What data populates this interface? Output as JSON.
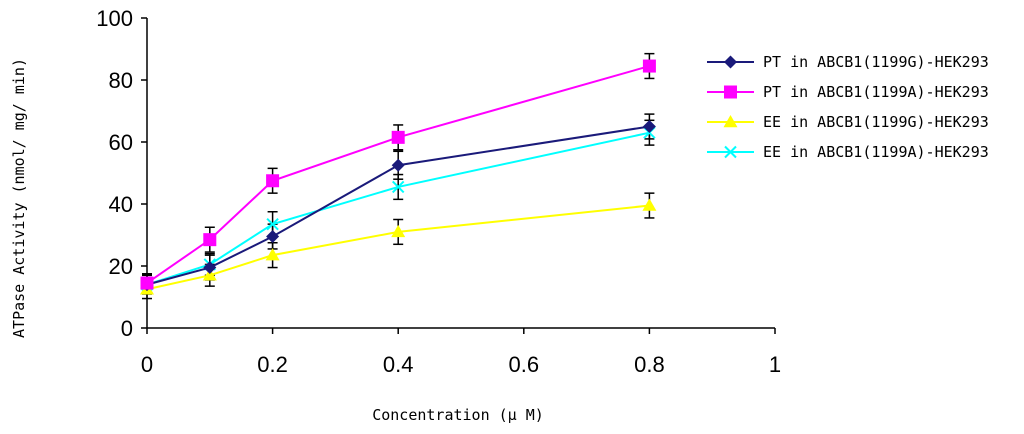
{
  "chart_data": {
    "type": "line",
    "title": "",
    "xlabel": "Concentration (μ M)",
    "ylabel": "ATPase Activity (nmol/ mg/ min)",
    "xlim": [
      0,
      1
    ],
    "ylim": [
      0,
      100
    ],
    "x_ticks": [
      0,
      0.2,
      0.4,
      0.6,
      0.8,
      1
    ],
    "x_tick_labels": [
      "0",
      "0.2",
      "0.4",
      "0.6",
      "0.8",
      "1"
    ],
    "y_ticks": [
      0,
      20,
      40,
      60,
      80,
      100
    ],
    "y_tick_labels": [
      "0",
      "20",
      "40",
      "60",
      "80",
      "100"
    ],
    "grid": false,
    "legend_position": "right",
    "x": [
      0,
      0.1,
      0.2,
      0.4,
      0.8
    ],
    "series": [
      {
        "name": "PT in ABCB1(1199G)-HEK293",
        "color": "#1a1a7a",
        "marker": "diamond",
        "values": [
          14,
          19.5,
          29.5,
          52.5,
          65
        ],
        "errors": [
          3,
          4,
          4,
          4.5,
          4
        ]
      },
      {
        "name": "PT in ABCB1(1199A)-HEK293",
        "color": "#ff00ff",
        "marker": "square",
        "values": [
          14.5,
          28.5,
          47.5,
          61.5,
          84.5
        ],
        "errors": [
          3,
          4,
          4,
          4,
          4
        ]
      },
      {
        "name": "EE in ABCB1(1199G)-HEK293",
        "color": "#ffff00",
        "marker": "triangle",
        "values": [
          12.5,
          17,
          23.5,
          31,
          39.5
        ],
        "errors": [
          3,
          3.5,
          4,
          4,
          4
        ]
      },
      {
        "name": "EE in ABCB1(1199A)-HEK293",
        "color": "#00ffff",
        "marker": "x",
        "values": [
          14,
          20.5,
          33.5,
          45.5,
          63
        ],
        "errors": [
          3,
          3.5,
          4,
          4,
          4
        ]
      }
    ]
  }
}
